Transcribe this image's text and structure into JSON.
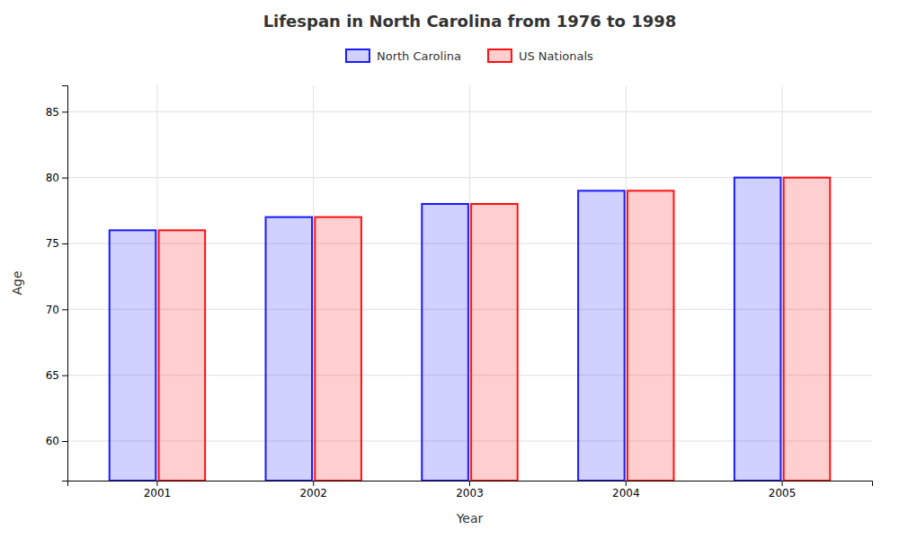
{
  "chart_data": {
    "type": "bar",
    "title": "Lifespan in North Carolina from 1976 to 1998",
    "xlabel": "Year",
    "ylabel": "Age",
    "categories": [
      "2001",
      "2002",
      "2003",
      "2004",
      "2005"
    ],
    "series": [
      {
        "name": "North Carolina",
        "color": "#1a1aff",
        "values": [
          76,
          77,
          78,
          79,
          80
        ]
      },
      {
        "name": "US Nationals",
        "color": "#ff1111",
        "values": [
          76,
          77,
          78,
          79,
          80
        ]
      }
    ],
    "ylim": [
      57,
      87
    ],
    "yticks": [
      60,
      65,
      70,
      75,
      80,
      85
    ],
    "grid": true,
    "legend": "top"
  }
}
